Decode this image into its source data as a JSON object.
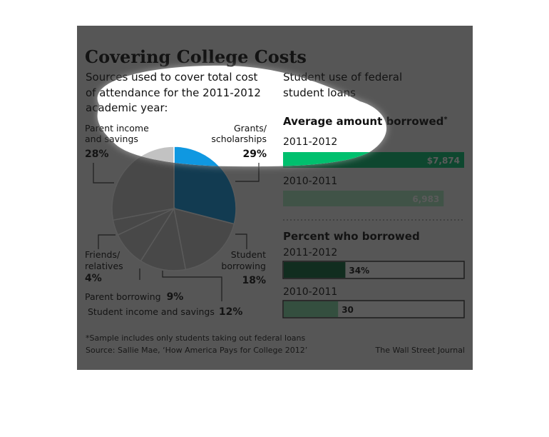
{
  "header": {
    "title": "Covering College Costs",
    "left_subtitle_lines": [
      "Sources used to cover total cost",
      "of attendance for the 2011-2012",
      "academic year:"
    ],
    "right_subtitle_lines": [
      "Student use of federal",
      "student loans"
    ]
  },
  "colors": {
    "grants": "#0f98e1",
    "pie_other": "#c2c2c2",
    "bar_2012": "#00c06e",
    "bar_2011": "#a8e8c0",
    "pct_2012": "#0d6a3a",
    "pct_2011": "#7fdba3"
  },
  "chart_data": [
    {
      "type": "pie",
      "title": "",
      "slices": [
        {
          "label_lines": [
            "Grants/",
            "scholarships"
          ],
          "value": 29,
          "value_label": "29%"
        },
        {
          "label_lines": [
            "Student",
            "borrowing"
          ],
          "value": 18,
          "value_label": "18%"
        },
        {
          "label_lines": [
            "Student income and savings"
          ],
          "value": 12,
          "value_label": "12%"
        },
        {
          "label_lines": [
            "Parent borrowing"
          ],
          "value": 9,
          "value_label": "9%"
        },
        {
          "label_lines": [
            "Friends/",
            "relatives"
          ],
          "value": 4,
          "value_label": "4%"
        },
        {
          "label_lines": [
            "Parent income",
            "and savings"
          ],
          "value": 28,
          "value_label": "28%"
        }
      ]
    },
    {
      "type": "bar",
      "title": "Average amount borrowed",
      "title_mark": "*",
      "categories": [
        "2011-2012",
        "2010-2011"
      ],
      "values": [
        7874,
        6983
      ],
      "value_labels": [
        "$7,874",
        "6,983"
      ],
      "xlim": [
        0,
        7874
      ]
    },
    {
      "type": "bar",
      "title": "Percent who borrowed",
      "categories": [
        "2011-2012",
        "2010-2011"
      ],
      "values": [
        34,
        30
      ],
      "value_labels": [
        "34%",
        "30"
      ],
      "xlim": [
        0,
        100
      ]
    }
  ],
  "footer": {
    "note": "*Sample includes only students taking out federal loans",
    "source": "Source: Sallie Mae, ‘How America Pays for College 2012’",
    "credit": "The Wall Street Journal"
  }
}
